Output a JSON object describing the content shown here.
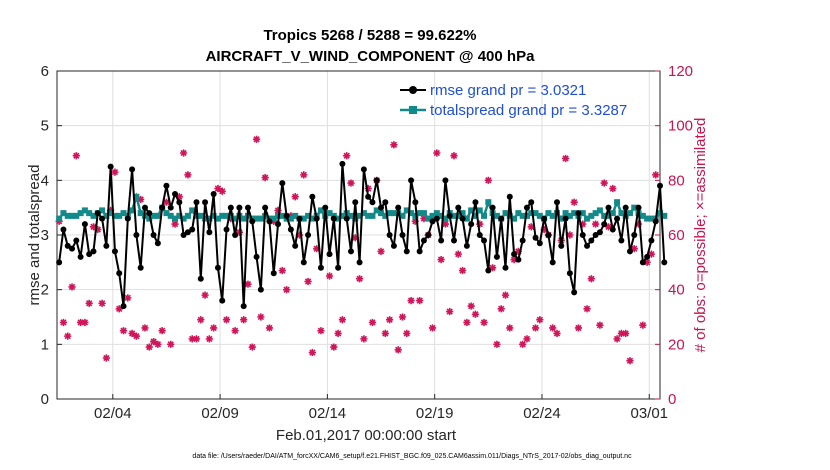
{
  "chart_data": {
    "type": "line",
    "title": "Tropics 5268 / 5288 = 99.622%",
    "subtitle": "AIRCRAFT_V_WIND_COMPONENT @ 400 hPa",
    "xlabel": "Feb.01,2017 00:00:00 start",
    "ylabel": "rmse and totalspread",
    "ylabel_right": "# of obs: o=possible; ×=assimilated",
    "footnote": "data file: /Users/raeder/DAI/ATM_forcXX/CAM6_setup/f.e21.FHIST_BGC.f09_025.CAM6assim.011/Diags_NTrS_2017-02/obs_diag_output.nc",
    "x_range_days": [
      0.9,
      29.0
    ],
    "ylim": [
      0,
      6
    ],
    "ylim_right": [
      0,
      120
    ],
    "yticks": [
      "0",
      "1",
      "2",
      "3",
      "4",
      "5",
      "6"
    ],
    "yticks_right": [
      "0",
      "20",
      "40",
      "60",
      "80",
      "100",
      "120"
    ],
    "xticks": [
      {
        "day": 3.5,
        "label": "02/04"
      },
      {
        "day": 8.5,
        "label": "02/09"
      },
      {
        "day": 13.5,
        "label": "02/14"
      },
      {
        "day": 18.5,
        "label": "02/19"
      },
      {
        "day": 23.5,
        "label": "02/24"
      },
      {
        "day": 28.5,
        "label": "03/01"
      }
    ],
    "grid": true,
    "legend_position": "top-right",
    "colors": {
      "rmse": "#000000",
      "spread": "#128a8a",
      "obs": "#d0155a",
      "legend_text": "#1f4fd6"
    },
    "series": [
      {
        "name": "rmse grand pr = 3.0321",
        "marker": "filled-circle",
        "values": [
          2.5,
          3.1,
          2.8,
          2.75,
          2.9,
          2.6,
          3.2,
          2.65,
          2.7,
          3.4,
          3.3,
          2.8,
          4.25,
          2.7,
          2.3,
          1.7,
          3.3,
          4.2,
          3.0,
          2.4,
          3.5,
          3.4,
          3.0,
          2.85,
          3.5,
          3.9,
          3.5,
          3.75,
          3.6,
          3.0,
          3.05,
          3.1,
          3.6,
          2.2,
          3.6,
          3.05,
          3.75,
          2.4,
          1.8,
          3.1,
          3.5,
          3.0,
          3.5,
          1.7,
          3.5,
          3.25,
          2.6,
          2.0,
          3.5,
          3.25,
          2.3,
          3.2,
          3.95,
          3.35,
          3.1,
          2.8,
          3.3,
          2.5,
          3.0,
          3.7,
          3.3,
          2.4,
          3.5,
          2.65,
          3.3,
          2.4,
          4.3,
          3.3,
          2.7,
          3.6,
          2.5,
          4.2,
          3.7,
          3.6,
          4.0,
          3.5,
          3.6,
          3.0,
          2.8,
          3.5,
          3.0,
          2.7,
          4.0,
          3.6,
          2.7,
          2.9,
          3.0,
          3.25,
          3.3,
          2.9,
          4.0,
          3.35,
          2.9,
          3.5,
          3.3,
          2.8,
          3.2,
          3.6,
          3.0,
          2.9,
          2.35,
          3.5,
          2.6,
          3.3,
          2.4,
          3.7,
          2.65,
          2.55,
          2.9,
          3.5,
          3.6,
          2.95,
          2.85,
          3.3,
          3.0,
          2.5,
          3.6,
          2.8,
          3.3,
          2.3,
          1.95,
          3.4,
          3.0,
          2.8,
          2.9,
          3.0,
          3.05,
          3.2,
          3.5,
          3.1,
          3.3,
          2.9,
          3.5,
          2.7,
          3.0,
          3.5,
          2.5,
          2.6,
          2.9,
          3.25,
          3.9,
          2.5
        ]
      },
      {
        "name": "totalspread grand pr = 3.3287",
        "marker": "filled-square",
        "values": [
          3.3,
          3.4,
          3.35,
          3.35,
          3.35,
          3.4,
          3.45,
          3.4,
          3.35,
          3.4,
          3.45,
          3.35,
          3.4,
          3.35,
          3.35,
          3.4,
          3.35,
          3.45,
          3.7,
          3.4,
          3.35,
          3.3,
          3.35,
          3.35,
          3.5,
          3.4,
          3.35,
          3.3,
          3.35,
          3.3,
          3.35,
          3.45,
          3.35,
          3.35,
          3.3,
          3.3,
          3.35,
          3.3,
          3.35,
          3.35,
          3.35,
          3.3,
          3.35,
          3.3,
          3.35,
          3.3,
          3.3,
          3.3,
          3.35,
          3.3,
          3.3,
          3.35,
          3.35,
          3.3,
          3.3,
          3.35,
          3.3,
          3.3,
          3.35,
          3.3,
          3.35,
          3.45,
          3.35,
          3.4,
          3.35,
          3.3,
          3.35,
          3.4,
          3.35,
          3.3,
          3.35,
          3.4,
          3.35,
          3.35,
          3.45,
          3.4,
          3.35,
          3.4,
          3.4,
          3.4,
          3.35,
          3.45,
          3.4,
          3.35,
          3.4,
          3.4,
          3.3,
          3.35,
          3.4,
          3.35,
          3.3,
          3.4,
          3.35,
          3.35,
          3.4,
          3.3,
          3.45,
          3.35,
          3.45,
          3.35,
          3.6,
          3.4,
          3.35,
          3.3,
          3.4,
          3.35,
          3.3,
          3.4,
          3.35,
          3.35,
          3.4,
          3.4,
          3.35,
          3.3,
          3.4,
          3.35,
          3.4,
          3.3,
          3.4,
          3.35,
          3.4,
          3.35,
          3.4,
          3.3,
          3.35,
          3.4,
          3.45,
          3.35,
          3.35,
          3.4,
          3.6,
          3.4,
          3.35,
          3.4,
          3.5,
          3.4,
          3.35,
          3.3,
          3.3,
          3.3,
          3.4,
          3.35
        ]
      }
    ],
    "obs_assimilated": [
      65,
      28,
      23,
      41,
      89,
      28,
      28,
      35,
      63,
      62,
      35,
      15,
      69,
      83,
      33,
      25,
      37,
      24,
      23,
      73,
      26,
      19,
      21,
      20,
      25,
      72,
      20,
      64,
      74,
      90,
      82,
      22,
      22,
      29,
      38,
      22,
      26,
      77,
      76,
      29,
      66,
      25,
      61,
      29,
      42,
      19,
      95,
      30,
      81,
      26,
      65,
      69,
      47,
      40,
      67,
      74,
      60,
      82,
      43,
      17,
      55,
      25,
      68,
      45,
      19,
      24,
      29,
      89,
      79,
      59,
      44,
      22,
      77,
      28,
      80,
      54,
      24,
      29,
      93,
      18,
      30,
      24,
      36,
      65,
      36,
      66,
      60,
      26,
      90,
      51,
      64,
      32,
      89,
      53,
      47,
      28,
      34,
      31,
      64,
      28,
      80,
      48,
      20,
      33,
      38,
      26,
      51,
      54,
      20,
      22,
      63,
      26,
      29,
      62,
      60,
      26,
      24,
      58,
      88,
      60,
      72,
      26,
      64,
      33,
      44,
      64,
      27,
      79,
      63,
      77,
      22,
      24,
      24,
      14,
      55,
      64,
      27,
      50,
      53,
      82
    ]
  }
}
